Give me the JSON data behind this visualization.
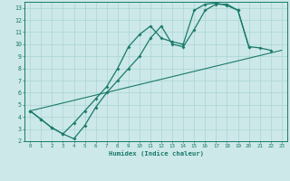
{
  "xlabel": "Humidex (Indice chaleur)",
  "bg_color": "#cce8e8",
  "grid_color": "#aad4d4",
  "line_color": "#1a7a6a",
  "xlim": [
    -0.5,
    23.5
  ],
  "ylim": [
    2,
    13.5
  ],
  "xticks": [
    0,
    1,
    2,
    3,
    4,
    5,
    6,
    7,
    8,
    9,
    10,
    11,
    12,
    13,
    14,
    15,
    16,
    17,
    18,
    19,
    20,
    21,
    22,
    23
  ],
  "yticks": [
    2,
    3,
    4,
    5,
    6,
    7,
    8,
    9,
    10,
    11,
    12,
    13
  ],
  "line1_x": [
    0,
    1,
    2,
    3,
    4,
    5,
    6,
    7,
    8,
    9,
    10,
    11,
    12,
    13,
    14,
    15,
    16,
    17,
    18,
    19,
    20,
    21,
    22
  ],
  "line1_y": [
    4.5,
    3.8,
    3.1,
    2.6,
    3.5,
    4.5,
    5.5,
    6.5,
    8.0,
    9.8,
    10.8,
    11.5,
    10.5,
    10.2,
    10.0,
    12.8,
    13.3,
    13.4,
    13.2,
    12.8,
    9.8,
    9.7,
    9.5
  ],
  "line2_x": [
    0,
    1,
    2,
    3,
    4,
    5,
    6,
    7,
    8,
    9,
    10,
    11,
    12,
    13,
    14,
    15,
    16,
    17,
    18,
    19,
    20
  ],
  "line2_y": [
    4.5,
    3.8,
    3.1,
    2.6,
    2.2,
    3.3,
    4.8,
    6.0,
    7.0,
    8.0,
    9.0,
    10.5,
    11.5,
    10.0,
    9.8,
    11.2,
    12.8,
    13.3,
    13.3,
    12.8,
    9.8
  ],
  "line3_x": [
    0,
    23
  ],
  "line3_y": [
    4.5,
    9.5
  ]
}
